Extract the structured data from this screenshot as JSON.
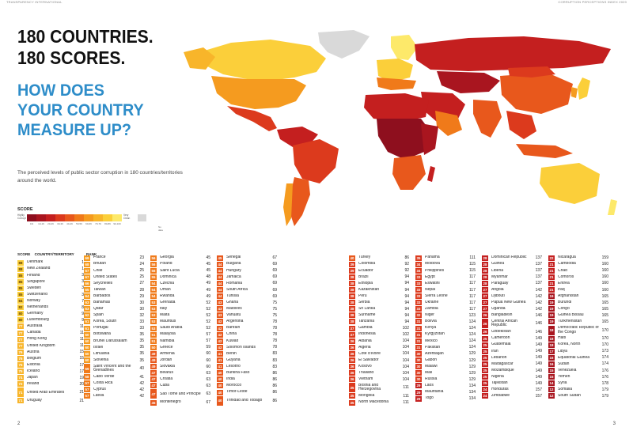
{
  "header": {
    "left": "TRANSPARENCY INTERNATIONAL",
    "right": "CORRUPTION PERCEPTIONS INDEX 2020"
  },
  "headline": {
    "line1": "180 COUNTRIES.",
    "line2": "180 SCORES."
  },
  "question": {
    "line1": "HOW DOES",
    "line2": "YOUR COUNTRY",
    "line3": "MEASURE UP?"
  },
  "description": "The perceived levels of public sector corruption in 180 countries/territories around the world.",
  "legend": {
    "title": "SCORE",
    "low_label": "Highly Corrupt",
    "high_label": "Very Clean",
    "ticks": [
      "0-9",
      "10-19",
      "20-29",
      "30-39",
      "40-49",
      "50-59",
      "60-69",
      "70-79",
      "80-89",
      "90-100"
    ],
    "colors": [
      "#8e0f1e",
      "#a9151f",
      "#c41f1f",
      "#dc3a1d",
      "#e8581c",
      "#f07a1a",
      "#f59b1f",
      "#f8b52a",
      "#fbcf3a",
      "#fde96a"
    ],
    "no_data_label": "No data",
    "no_data_color": "#d9d9d9"
  },
  "table_header": {
    "score": "SCORE",
    "country": "COUNTRY/TERRITORY",
    "rank": "RANK"
  },
  "columns": [
    [
      [
        "88",
        "Denmark",
        "1"
      ],
      [
        "88",
        "New Zealand",
        "1"
      ],
      [
        "85",
        "Finland",
        "3"
      ],
      [
        "85",
        "Singapore",
        "3"
      ],
      [
        "85",
        "Sweden",
        "3"
      ],
      [
        "85",
        "Switzerland",
        "3"
      ],
      [
        "84",
        "Norway",
        "7"
      ],
      [
        "82",
        "Netherlands",
        "8"
      ],
      [
        "80",
        "Germany",
        "9"
      ],
      [
        "80",
        "Luxembourg",
        "9"
      ],
      [
        "77",
        "Australia",
        "11"
      ],
      [
        "77",
        "Canada",
        "11"
      ],
      [
        "77",
        "Hong Kong",
        "11"
      ],
      [
        "77",
        "United Kingdom",
        "11"
      ],
      [
        "76",
        "Austria",
        "15"
      ],
      [
        "76",
        "Belgium",
        "15"
      ],
      [
        "75",
        "Estonia",
        "17"
      ],
      [
        "75",
        "Iceland",
        "17"
      ],
      [
        "74",
        "Japan",
        "19"
      ],
      [
        "72",
        "Ireland",
        "20"
      ],
      [
        "71",
        "United Arab Emirates",
        "21"
      ],
      [
        "71",
        "Uruguay",
        "21"
      ]
    ],
    [
      [
        "69",
        "France",
        "23"
      ],
      [
        "68",
        "Bhutan",
        "24"
      ],
      [
        "67",
        "Chile",
        "25"
      ],
      [
        "67",
        "United States",
        "25"
      ],
      [
        "66",
        "Seychelles",
        "27"
      ],
      [
        "65",
        "Taiwan",
        "28"
      ],
      [
        "64",
        "Barbados",
        "29"
      ],
      [
        "63",
        "Bahamas",
        "30"
      ],
      [
        "63",
        "Qatar",
        "30"
      ],
      [
        "62",
        "Spain",
        "32"
      ],
      [
        "61",
        "Korea, South",
        "33"
      ],
      [
        "61",
        "Portugal",
        "33"
      ],
      [
        "60",
        "Botswana",
        "35"
      ],
      [
        "60",
        "Brunei Darussalam",
        "35"
      ],
      [
        "60",
        "Israel",
        "35"
      ],
      [
        "60",
        "Lithuania",
        "35"
      ],
      [
        "60",
        "Slovenia",
        "35"
      ],
      [
        "59",
        "Saint Vincent and the Grenadines",
        "40"
      ],
      [
        "58",
        "Cabo Verde",
        "41"
      ],
      [
        "57",
        "Costa Rica",
        "42"
      ],
      [
        "57",
        "Cyprus",
        "42"
      ],
      [
        "57",
        "Latvia",
        "42"
      ]
    ],
    [
      [
        "56",
        "Georgia",
        "45"
      ],
      [
        "56",
        "Poland",
        "45"
      ],
      [
        "56",
        "Saint Lucia",
        "45"
      ],
      [
        "55",
        "Dominica",
        "48"
      ],
      [
        "54",
        "Czechia",
        "49"
      ],
      [
        "54",
        "Oman",
        "49"
      ],
      [
        "54",
        "Rwanda",
        "49"
      ],
      [
        "53",
        "Grenada",
        "52"
      ],
      [
        "53",
        "Italy",
        "52"
      ],
      [
        "53",
        "Malta",
        "52"
      ],
      [
        "53",
        "Mauritius",
        "52"
      ],
      [
        "53",
        "Saudi Arabia",
        "52"
      ],
      [
        "51",
        "Malaysia",
        "57"
      ],
      [
        "51",
        "Namibia",
        "57"
      ],
      [
        "50",
        "Greece",
        "59"
      ],
      [
        "49",
        "Armenia",
        "60"
      ],
      [
        "49",
        "Jordan",
        "60"
      ],
      [
        "49",
        "Slovakia",
        "60"
      ],
      [
        "47",
        "Belarus",
        "63"
      ],
      [
        "47",
        "Croatia",
        "63"
      ],
      [
        "47",
        "Cuba",
        "63"
      ],
      [
        "47",
        "Sao Tome and Principe",
        "63"
      ],
      [
        "45",
        "Montenegro",
        "67"
      ]
    ],
    [
      [
        "45",
        "Senegal",
        "67"
      ],
      [
        "44",
        "Bulgaria",
        "69"
      ],
      [
        "44",
        "Hungary",
        "69"
      ],
      [
        "44",
        "Jamaica",
        "69"
      ],
      [
        "44",
        "Romania",
        "69"
      ],
      [
        "44",
        "South Africa",
        "69"
      ],
      [
        "44",
        "Tunisia",
        "69"
      ],
      [
        "43",
        "Ghana",
        "75"
      ],
      [
        "43",
        "Maldives",
        "75"
      ],
      [
        "43",
        "Vanuatu",
        "75"
      ],
      [
        "42",
        "Argentina",
        "78"
      ],
      [
        "42",
        "Bahrain",
        "78"
      ],
      [
        "42",
        "China",
        "78"
      ],
      [
        "42",
        "Kuwait",
        "78"
      ],
      [
        "42",
        "Solomon Islands",
        "78"
      ],
      [
        "41",
        "Benin",
        "83"
      ],
      [
        "41",
        "Guyana",
        "83"
      ],
      [
        "41",
        "Lesotho",
        "83"
      ],
      [
        "40",
        "Burkina Faso",
        "86"
      ],
      [
        "40",
        "India",
        "86"
      ],
      [
        "40",
        "Morocco",
        "86"
      ],
      [
        "40",
        "Timor-Leste",
        "86"
      ],
      [
        "40",
        "Trinidad and Tobago",
        "86"
      ]
    ],
    [
      [
        "40",
        "Turkey",
        "86"
      ],
      [
        "39",
        "Colombia",
        "92"
      ],
      [
        "39",
        "Ecuador",
        "92"
      ],
      [
        "38",
        "Brazil",
        "94"
      ],
      [
        "38",
        "Ethiopia",
        "94"
      ],
      [
        "38",
        "Kazakhstan",
        "94"
      ],
      [
        "38",
        "Peru",
        "94"
      ],
      [
        "38",
        "Serbia",
        "94"
      ],
      [
        "38",
        "Sri Lanka",
        "94"
      ],
      [
        "38",
        "Suriname",
        "94"
      ],
      [
        "38",
        "Tanzania",
        "94"
      ],
      [
        "37",
        "Gambia",
        "102"
      ],
      [
        "37",
        "Indonesia",
        "102"
      ],
      [
        "36",
        "Albania",
        "104"
      ],
      [
        "36",
        "Algeria",
        "104"
      ],
      [
        "36",
        "Cote d'Ivoire",
        "104"
      ],
      [
        "36",
        "El Salvador",
        "104"
      ],
      [
        "36",
        "Kosovo",
        "104"
      ],
      [
        "36",
        "Thailand",
        "104"
      ],
      [
        "36",
        "Vietnam",
        "104"
      ],
      [
        "35",
        "Bosnia and Herzegovina",
        "111"
      ],
      [
        "35",
        "Mongolia",
        "111"
      ],
      [
        "35",
        "North Macedonia",
        "111"
      ]
    ],
    [
      [
        "35",
        "Panama",
        "111"
      ],
      [
        "34",
        "Moldova",
        "115"
      ],
      [
        "34",
        "Philippines",
        "115"
      ],
      [
        "33",
        "Egypt",
        "117"
      ],
      [
        "33",
        "Eswatini",
        "117"
      ],
      [
        "33",
        "Nepal",
        "117"
      ],
      [
        "33",
        "Sierra Leone",
        "117"
      ],
      [
        "33",
        "Ukraine",
        "117"
      ],
      [
        "33",
        "Zambia",
        "117"
      ],
      [
        "32",
        "Niger",
        "123"
      ],
      [
        "31",
        "Bolivia",
        "124"
      ],
      [
        "31",
        "Kenya",
        "124"
      ],
      [
        "31",
        "Kyrgyzstan",
        "124"
      ],
      [
        "31",
        "Mexico",
        "124"
      ],
      [
        "31",
        "Pakistan",
        "124"
      ],
      [
        "30",
        "Azerbaijan",
        "129"
      ],
      [
        "30",
        "Gabon",
        "129"
      ],
      [
        "30",
        "Malawi",
        "129"
      ],
      [
        "30",
        "Mali",
        "129"
      ],
      [
        "30",
        "Russia",
        "129"
      ],
      [
        "29",
        "Laos",
        "134"
      ],
      [
        "29",
        "Mauritania",
        "134"
      ],
      [
        "29",
        "Togo",
        "134"
      ]
    ],
    [
      [
        "28",
        "Dominican Republic",
        "137"
      ],
      [
        "28",
        "Guinea",
        "137"
      ],
      [
        "28",
        "Liberia",
        "137"
      ],
      [
        "28",
        "Myanmar",
        "137"
      ],
      [
        "28",
        "Paraguay",
        "137"
      ],
      [
        "27",
        "Angola",
        "142"
      ],
      [
        "27",
        "Djibouti",
        "142"
      ],
      [
        "27",
        "Papua New Guinea",
        "142"
      ],
      [
        "27",
        "Uganda",
        "142"
      ],
      [
        "26",
        "Bangladesh",
        "146"
      ],
      [
        "26",
        "Central African Republic",
        "146"
      ],
      [
        "26",
        "Uzbekistan",
        "146"
      ],
      [
        "25",
        "Cameroon",
        "149"
      ],
      [
        "25",
        "Guatemala",
        "149"
      ],
      [
        "25",
        "Iran",
        "149"
      ],
      [
        "25",
        "Lebanon",
        "149"
      ],
      [
        "25",
        "Madagascar",
        "149"
      ],
      [
        "25",
        "Mozambique",
        "149"
      ],
      [
        "25",
        "Nigeria",
        "149"
      ],
      [
        "25",
        "Tajikistan",
        "149"
      ],
      [
        "24",
        "Honduras",
        "157"
      ],
      [
        "24",
        "Zimbabwe",
        "157"
      ]
    ],
    [
      [
        "22",
        "Nicaragua",
        "159"
      ],
      [
        "21",
        "Cambodia",
        "160"
      ],
      [
        "21",
        "Chad",
        "160"
      ],
      [
        "21",
        "Comoros",
        "160"
      ],
      [
        "21",
        "Eritrea",
        "160"
      ],
      [
        "21",
        "Iraq",
        "160"
      ],
      [
        "19",
        "Afghanistan",
        "165"
      ],
      [
        "19",
        "Burundi",
        "165"
      ],
      [
        "19",
        "Congo",
        "165"
      ],
      [
        "19",
        "Guinea Bissau",
        "165"
      ],
      [
        "19",
        "Turkmenistan",
        "165"
      ],
      [
        "18",
        "Democratic Republic of the Congo",
        "170"
      ],
      [
        "18",
        "Haiti",
        "170"
      ],
      [
        "18",
        "Korea, North",
        "170"
      ],
      [
        "17",
        "Libya",
        "173"
      ],
      [
        "16",
        "Equatorial Guinea",
        "174"
      ],
      [
        "16",
        "Sudan",
        "174"
      ],
      [
        "15",
        "Venezuela",
        "176"
      ],
      [
        "15",
        "Yemen",
        "176"
      ],
      [
        "14",
        "Syria",
        "178"
      ],
      [
        "12",
        "Somalia",
        "179"
      ],
      [
        "12",
        "South Sudan",
        "179"
      ]
    ]
  ],
  "page_numbers": {
    "left": "2",
    "right": "3"
  }
}
